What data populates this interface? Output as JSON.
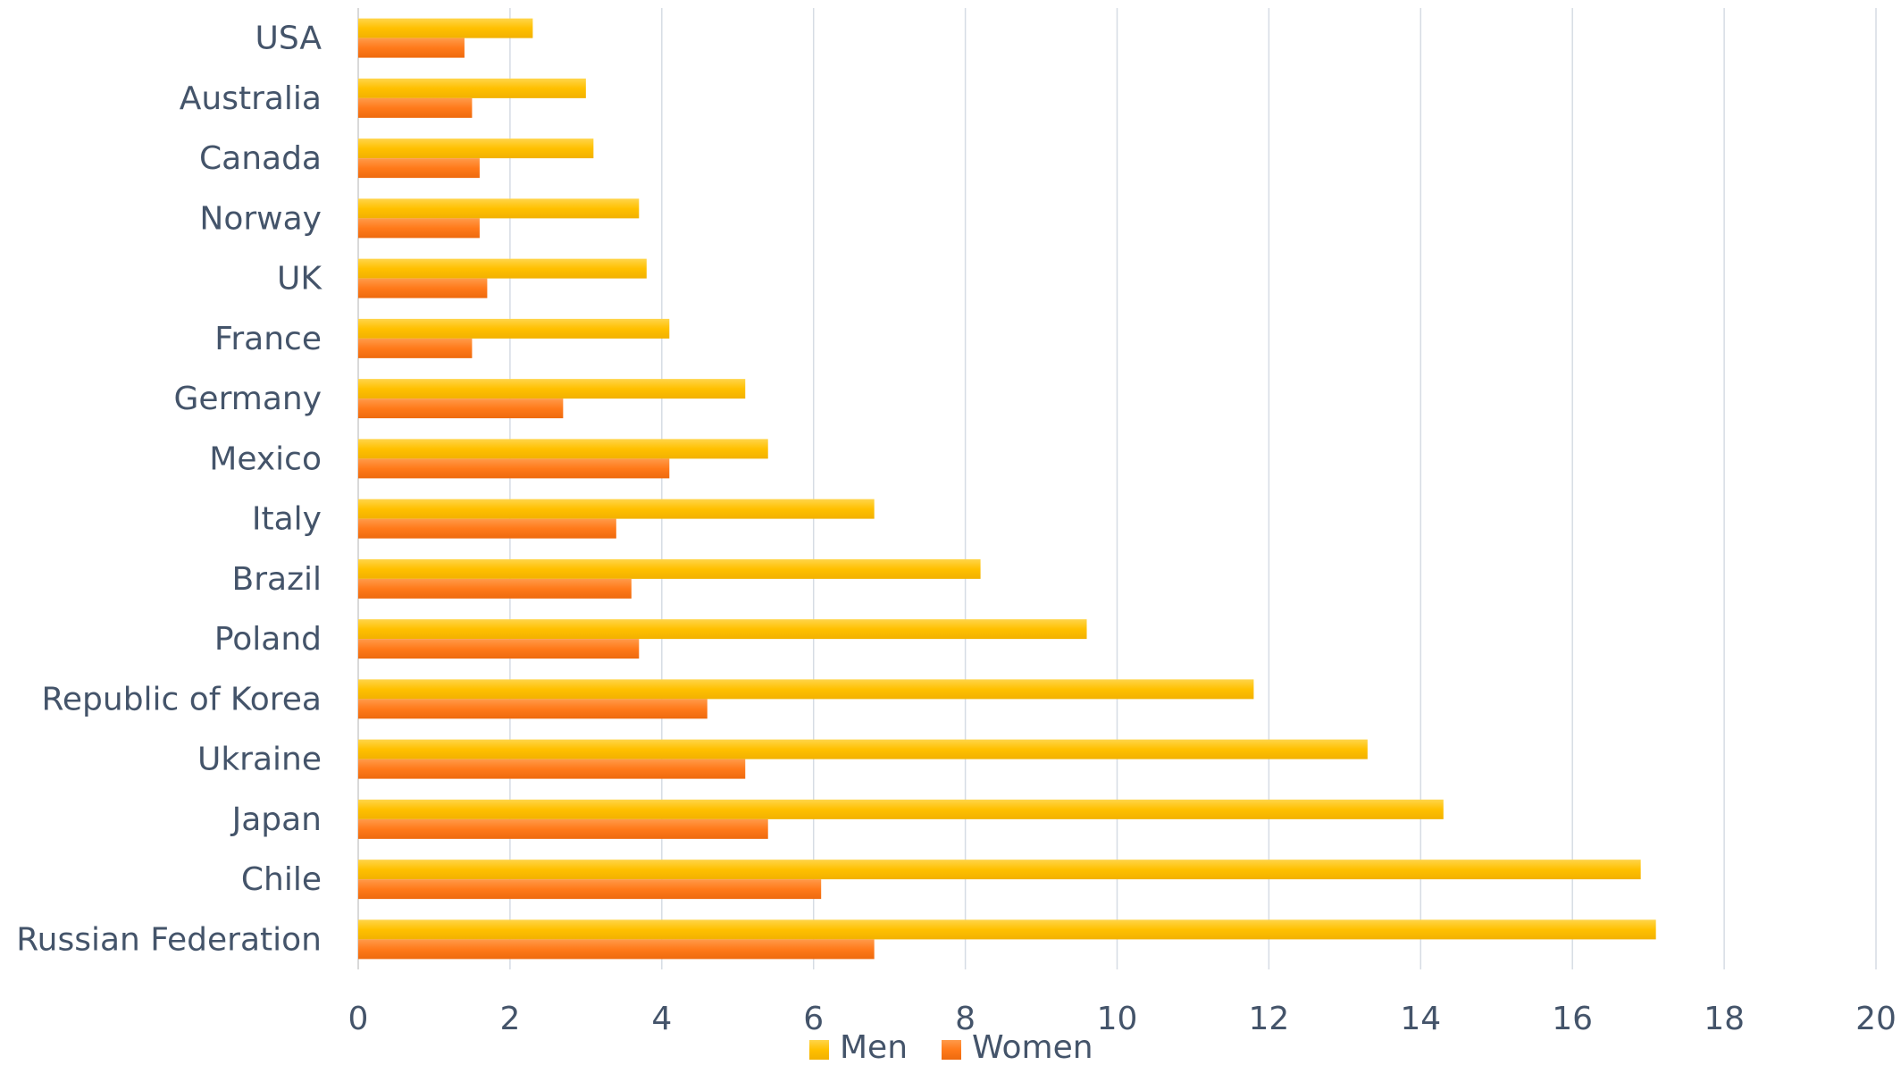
{
  "chart_data": {
    "type": "bar",
    "orientation": "horizontal",
    "categories": [
      "USA",
      "Australia",
      "Canada",
      "Norway",
      "UK",
      "France",
      "Germany",
      "Mexico",
      "Italy",
      "Brazil",
      "Poland",
      "Republic of Korea",
      "Ukraine",
      "Japan",
      "Chile",
      "Russian Federation"
    ],
    "series": [
      {
        "name": "Men",
        "color": "#FFC000",
        "values": [
          2.3,
          3.0,
          3.1,
          3.7,
          3.8,
          4.1,
          5.1,
          5.4,
          6.8,
          8.2,
          9.6,
          11.8,
          13.3,
          14.3,
          16.9,
          17.1
        ]
      },
      {
        "name": "Women",
        "color": "#FF7A1A",
        "values": [
          1.4,
          1.5,
          1.6,
          1.6,
          1.7,
          1.5,
          2.7,
          4.1,
          3.4,
          3.6,
          3.7,
          4.6,
          5.1,
          5.4,
          6.1,
          6.8
        ]
      }
    ],
    "xlim": [
      0,
      20
    ],
    "x_ticks": [
      "0",
      "2",
      "4",
      "6",
      "8",
      "10",
      "12",
      "14",
      "16",
      "18",
      "20"
    ],
    "grid": "vertical",
    "legend_position": "bottom",
    "colors": {
      "label_text": "#44546A",
      "gridline": "#D6DCE4",
      "axis_line": "#D9D9D9"
    }
  }
}
